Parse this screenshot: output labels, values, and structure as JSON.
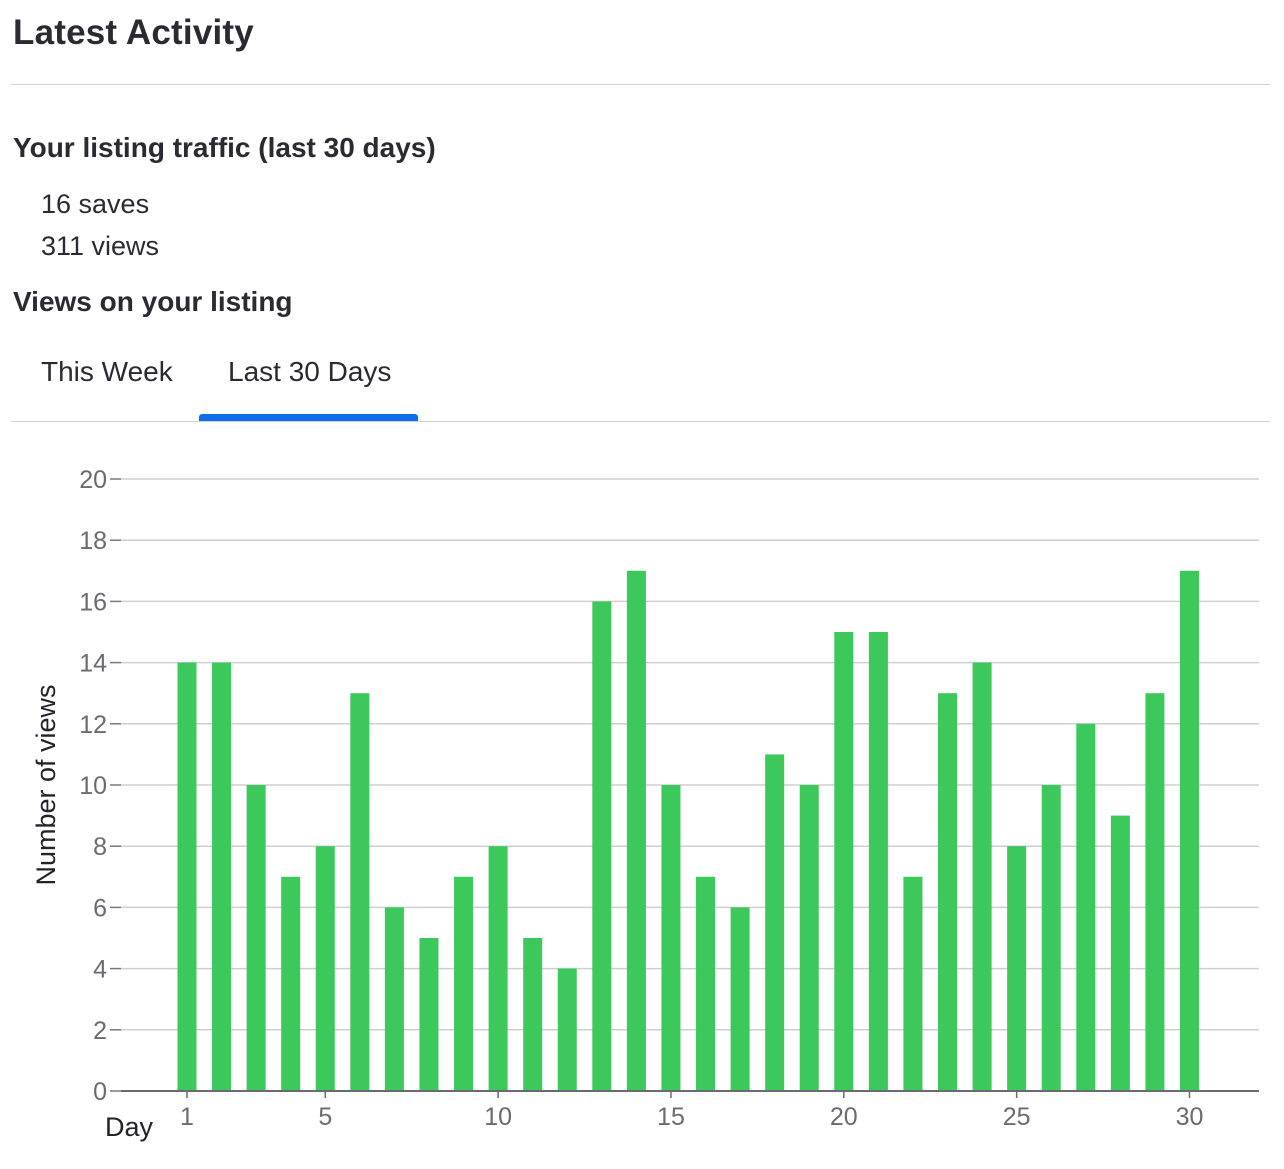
{
  "header": {
    "title": "Latest Activity"
  },
  "traffic": {
    "title": "Your listing traffic (last 30 days)",
    "saves": "16 saves",
    "views": "311 views"
  },
  "views_section": {
    "title": "Views on your listing",
    "tabs": [
      {
        "label": "This Week",
        "selected": false
      },
      {
        "label": "Last 30 Days",
        "selected": true
      }
    ],
    "accent_color": "#0d6fe8"
  },
  "chart_data": {
    "type": "bar",
    "xlabel": "Day",
    "ylabel": "Number of views",
    "x": [
      1,
      2,
      3,
      4,
      5,
      6,
      7,
      8,
      9,
      10,
      11,
      12,
      13,
      14,
      15,
      16,
      17,
      18,
      19,
      20,
      21,
      22,
      23,
      24,
      25,
      26,
      27,
      28,
      29,
      30
    ],
    "values": [
      14,
      14,
      10,
      7,
      8,
      13,
      6,
      5,
      7,
      8,
      5,
      4,
      16,
      17,
      10,
      7,
      6,
      11,
      10,
      15,
      15,
      7,
      13,
      14,
      8,
      10,
      12,
      9,
      13,
      17
    ],
    "x_ticks": [
      1,
      5,
      10,
      15,
      20,
      25,
      30
    ],
    "y_ticks": [
      0,
      2,
      4,
      6,
      8,
      10,
      12,
      14,
      16,
      18,
      20
    ],
    "ylim": [
      0,
      20
    ],
    "grid": true,
    "bar_color": "#3cc85a"
  }
}
